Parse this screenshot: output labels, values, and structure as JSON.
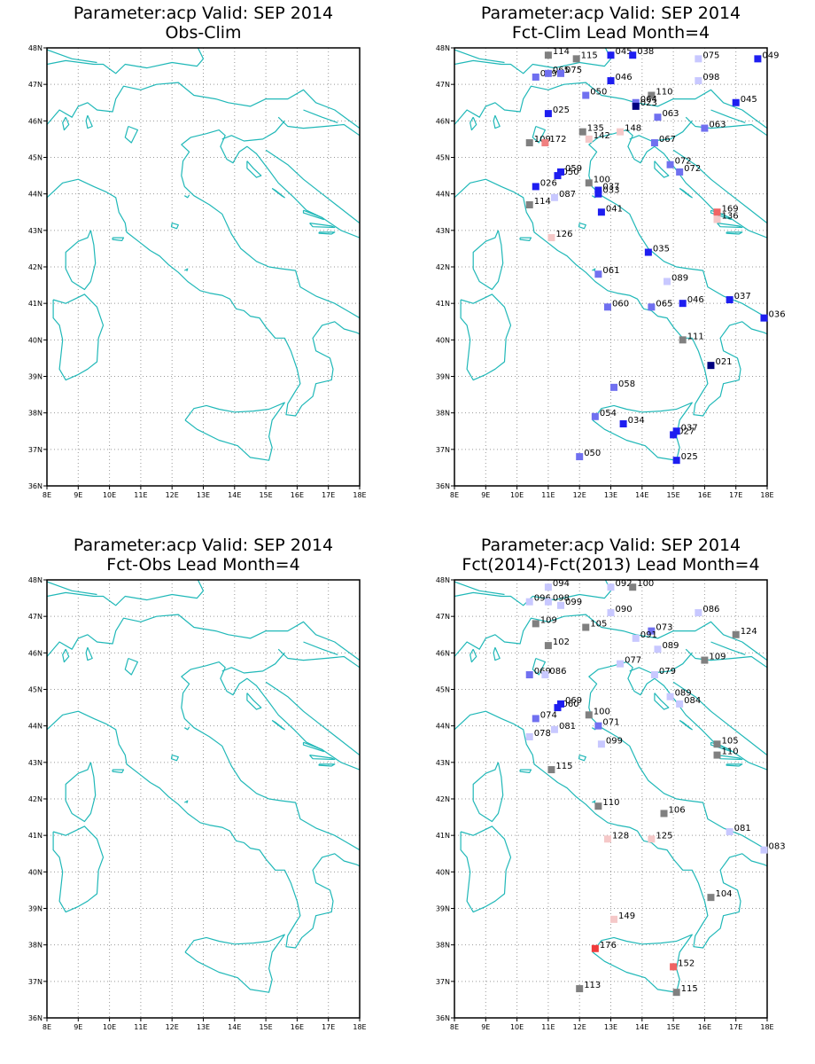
{
  "axes": {
    "lon_labels": [
      "8E",
      "9E",
      "10E",
      "11E",
      "12E",
      "13E",
      "14E",
      "15E",
      "16E",
      "17E",
      "18E"
    ],
    "lat_labels": [
      "36N",
      "37N",
      "38N",
      "39N",
      "40N",
      "41N",
      "42N",
      "43N",
      "44N",
      "45N",
      "46N",
      "47N",
      "48N"
    ]
  },
  "colors": {
    "coast": "#20b8b8",
    "grid": "#999999",
    "frame": "#000000"
  },
  "panels": [
    {
      "id": "obs-clim",
      "title1": "Parameter:acp Valid: SEP 2014",
      "title2": "Obs-Clim",
      "stations": []
    },
    {
      "id": "fct-clim",
      "title1": "Parameter:acp Valid: SEP 2014",
      "title2": "Fct-Clim Lead Month=4",
      "stations": [
        {
          "lon": 11.0,
          "lat": 47.8,
          "label": "114",
          "color": "#808080"
        },
        {
          "lon": 11.9,
          "lat": 47.7,
          "label": "115",
          "color": "#808080"
        },
        {
          "lon": 13.0,
          "lat": 47.8,
          "label": "045",
          "color": "#1e1ef0"
        },
        {
          "lon": 13.7,
          "lat": 47.8,
          "label": "038",
          "color": "#1e1ef0"
        },
        {
          "lon": 15.8,
          "lat": 47.7,
          "label": "075",
          "color": "#c8c8ff"
        },
        {
          "lon": 17.7,
          "lat": 47.7,
          "label": "049",
          "color": "#1e1ef0"
        },
        {
          "lon": 10.6,
          "lat": 47.2,
          "label": "069",
          "color": "#7070f0"
        },
        {
          "lon": 11.0,
          "lat": 47.3,
          "label": "065",
          "color": "#7070f0"
        },
        {
          "lon": 11.4,
          "lat": 47.3,
          "label": "075",
          "color": "#7070f0"
        },
        {
          "lon": 13.0,
          "lat": 47.1,
          "label": "046",
          "color": "#1e1ef0"
        },
        {
          "lon": 15.8,
          "lat": 47.1,
          "label": "098",
          "color": "#c8c8ff"
        },
        {
          "lon": 12.2,
          "lat": 46.7,
          "label": "050",
          "color": "#7070f0"
        },
        {
          "lon": 14.3,
          "lat": 46.7,
          "label": "110",
          "color": "#808080"
        },
        {
          "lon": 13.8,
          "lat": 46.5,
          "label": "064",
          "color": "#7070f0"
        },
        {
          "lon": 13.8,
          "lat": 46.4,
          "label": "023",
          "color": "#000080"
        },
        {
          "lon": 17.0,
          "lat": 46.5,
          "label": "045",
          "color": "#1e1ef0"
        },
        {
          "lon": 11.0,
          "lat": 46.2,
          "label": "025",
          "color": "#1e1ef0"
        },
        {
          "lon": 14.5,
          "lat": 46.1,
          "label": "063",
          "color": "#7070f0"
        },
        {
          "lon": 16.0,
          "lat": 45.8,
          "label": "063",
          "color": "#7070f0"
        },
        {
          "lon": 12.1,
          "lat": 45.7,
          "label": "135",
          "color": "#808080"
        },
        {
          "lon": 13.3,
          "lat": 45.7,
          "label": "148",
          "color": "#f5c8c8"
        },
        {
          "lon": 10.4,
          "lat": 45.4,
          "label": "109",
          "color": "#808080"
        },
        {
          "lon": 10.9,
          "lat": 45.4,
          "label": "172",
          "color": "#f08080"
        },
        {
          "lon": 12.3,
          "lat": 45.5,
          "label": "142",
          "color": "#f5c8c8"
        },
        {
          "lon": 14.4,
          "lat": 45.4,
          "label": "067",
          "color": "#7070f0"
        },
        {
          "lon": 14.9,
          "lat": 44.8,
          "label": "072",
          "color": "#7070f0"
        },
        {
          "lon": 15.2,
          "lat": 44.6,
          "label": "072",
          "color": "#7070f0"
        },
        {
          "lon": 11.3,
          "lat": 44.5,
          "label": "050",
          "color": "#1e1ef0"
        },
        {
          "lon": 11.4,
          "lat": 44.6,
          "label": "059",
          "color": "#1e1ef0"
        },
        {
          "lon": 10.6,
          "lat": 44.2,
          "label": "026",
          "color": "#1e1ef0"
        },
        {
          "lon": 12.3,
          "lat": 44.3,
          "label": "100",
          "color": "#808080"
        },
        {
          "lon": 12.6,
          "lat": 44.0,
          "label": "033",
          "color": "#1e1ef0"
        },
        {
          "lon": 12.6,
          "lat": 44.1,
          "label": "037",
          "color": "#1e1ef0"
        },
        {
          "lon": 11.2,
          "lat": 43.9,
          "label": "087",
          "color": "#c8c8ff"
        },
        {
          "lon": 10.4,
          "lat": 43.7,
          "label": "114",
          "color": "#808080"
        },
        {
          "lon": 12.7,
          "lat": 43.5,
          "label": "041",
          "color": "#1e1ef0"
        },
        {
          "lon": 16.4,
          "lat": 43.5,
          "label": "169",
          "color": "#f06464"
        },
        {
          "lon": 16.4,
          "lat": 43.3,
          "label": "136",
          "color": "#f5c8c8"
        },
        {
          "lon": 11.1,
          "lat": 42.8,
          "label": "126",
          "color": "#f5c8c8"
        },
        {
          "lon": 14.2,
          "lat": 42.4,
          "label": "035",
          "color": "#1e1ef0"
        },
        {
          "lon": 12.6,
          "lat": 41.8,
          "label": "061",
          "color": "#7070f0"
        },
        {
          "lon": 14.8,
          "lat": 41.6,
          "label": "089",
          "color": "#c8c8ff"
        },
        {
          "lon": 16.8,
          "lat": 41.1,
          "label": "037",
          "color": "#1e1ef0"
        },
        {
          "lon": 15.3,
          "lat": 41.0,
          "label": "046",
          "color": "#1e1ef0"
        },
        {
          "lon": 12.9,
          "lat": 40.9,
          "label": "060",
          "color": "#7070f0"
        },
        {
          "lon": 14.3,
          "lat": 40.9,
          "label": "065",
          "color": "#7070f0"
        },
        {
          "lon": 17.9,
          "lat": 40.6,
          "label": "036",
          "color": "#1e1ef0"
        },
        {
          "lon": 15.3,
          "lat": 40.0,
          "label": "111",
          "color": "#808080"
        },
        {
          "lon": 16.2,
          "lat": 39.3,
          "label": "021",
          "color": "#000080"
        },
        {
          "lon": 13.1,
          "lat": 38.7,
          "label": "058",
          "color": "#7070f0"
        },
        {
          "lon": 12.5,
          "lat": 37.9,
          "label": "054",
          "color": "#7070f0"
        },
        {
          "lon": 13.4,
          "lat": 37.7,
          "label": "034",
          "color": "#1e1ef0"
        },
        {
          "lon": 15.0,
          "lat": 37.4,
          "label": "027",
          "color": "#1e1ef0"
        },
        {
          "lon": 15.1,
          "lat": 37.5,
          "label": "037",
          "color": "#1e1ef0"
        },
        {
          "lon": 12.0,
          "lat": 36.8,
          "label": "050",
          "color": "#7070f0"
        },
        {
          "lon": 15.1,
          "lat": 36.7,
          "label": "025",
          "color": "#1e1ef0"
        }
      ]
    },
    {
      "id": "fct-obs",
      "title1": "Parameter:acp Valid: SEP 2014",
      "title2": "Fct-Obs Lead Month=4",
      "stations": []
    },
    {
      "id": "fct2014-fct2013",
      "title1": "Parameter:acp Valid: SEP 2014",
      "title2": "Fct(2014)-Fct(2013) Lead Month=4",
      "stations": [
        {
          "lon": 11.0,
          "lat": 47.8,
          "label": "094",
          "color": "#c8c8ff"
        },
        {
          "lon": 13.0,
          "lat": 47.8,
          "label": "092",
          "color": "#c8c8ff"
        },
        {
          "lon": 13.7,
          "lat": 47.8,
          "label": "100",
          "color": "#808080"
        },
        {
          "lon": 10.4,
          "lat": 47.4,
          "label": "096",
          "color": "#c8c8ff"
        },
        {
          "lon": 11.0,
          "lat": 47.4,
          "label": "098",
          "color": "#c8c8ff"
        },
        {
          "lon": 11.4,
          "lat": 47.3,
          "label": "099",
          "color": "#c8c8ff"
        },
        {
          "lon": 15.8,
          "lat": 47.1,
          "label": "086",
          "color": "#c8c8ff"
        },
        {
          "lon": 13.0,
          "lat": 47.1,
          "label": "090",
          "color": "#c8c8ff"
        },
        {
          "lon": 10.6,
          "lat": 46.8,
          "label": "109",
          "color": "#808080"
        },
        {
          "lon": 12.2,
          "lat": 46.7,
          "label": "105",
          "color": "#808080"
        },
        {
          "lon": 14.3,
          "lat": 46.6,
          "label": "073",
          "color": "#7070f0"
        },
        {
          "lon": 17.0,
          "lat": 46.5,
          "label": "124",
          "color": "#808080"
        },
        {
          "lon": 13.8,
          "lat": 46.4,
          "label": "091",
          "color": "#c8c8ff"
        },
        {
          "lon": 11.0,
          "lat": 46.2,
          "label": "102",
          "color": "#808080"
        },
        {
          "lon": 14.5,
          "lat": 46.1,
          "label": "089",
          "color": "#c8c8ff"
        },
        {
          "lon": 16.0,
          "lat": 45.8,
          "label": "109",
          "color": "#808080"
        },
        {
          "lon": 13.3,
          "lat": 45.7,
          "label": "077",
          "color": "#c8c8ff"
        },
        {
          "lon": 10.4,
          "lat": 45.4,
          "label": "069",
          "color": "#7070f0"
        },
        {
          "lon": 10.9,
          "lat": 45.4,
          "label": "086",
          "color": "#c8c8ff"
        },
        {
          "lon": 14.4,
          "lat": 45.4,
          "label": "079",
          "color": "#c8c8ff"
        },
        {
          "lon": 14.9,
          "lat": 44.8,
          "label": "089",
          "color": "#c8c8ff"
        },
        {
          "lon": 15.2,
          "lat": 44.6,
          "label": "084",
          "color": "#c8c8ff"
        },
        {
          "lon": 11.3,
          "lat": 44.5,
          "label": "060",
          "color": "#1e1ef0"
        },
        {
          "lon": 11.4,
          "lat": 44.6,
          "label": "069",
          "color": "#1e1ef0"
        },
        {
          "lon": 10.6,
          "lat": 44.2,
          "label": "074",
          "color": "#7070f0"
        },
        {
          "lon": 12.3,
          "lat": 44.3,
          "label": "100",
          "color": "#808080"
        },
        {
          "lon": 12.6,
          "lat": 44.0,
          "label": "071",
          "color": "#7070f0"
        },
        {
          "lon": 11.2,
          "lat": 43.9,
          "label": "081",
          "color": "#c8c8ff"
        },
        {
          "lon": 10.4,
          "lat": 43.7,
          "label": "078",
          "color": "#c8c8ff"
        },
        {
          "lon": 12.7,
          "lat": 43.5,
          "label": "099",
          "color": "#c8c8ff"
        },
        {
          "lon": 16.4,
          "lat": 43.5,
          "label": "105",
          "color": "#808080"
        },
        {
          "lon": 16.4,
          "lat": 43.2,
          "label": "110",
          "color": "#808080"
        },
        {
          "lon": 11.1,
          "lat": 42.8,
          "label": "115",
          "color": "#808080"
        },
        {
          "lon": 12.6,
          "lat": 41.8,
          "label": "110",
          "color": "#808080"
        },
        {
          "lon": 14.7,
          "lat": 41.6,
          "label": "106",
          "color": "#808080"
        },
        {
          "lon": 16.8,
          "lat": 41.1,
          "label": "081",
          "color": "#c8c8ff"
        },
        {
          "lon": 12.9,
          "lat": 40.9,
          "label": "128",
          "color": "#f5c8c8"
        },
        {
          "lon": 14.3,
          "lat": 40.9,
          "label": "125",
          "color": "#f5c8c8"
        },
        {
          "lon": 17.9,
          "lat": 40.6,
          "label": "083",
          "color": "#c8c8ff"
        },
        {
          "lon": 16.2,
          "lat": 39.3,
          "label": "104",
          "color": "#808080"
        },
        {
          "lon": 13.1,
          "lat": 38.7,
          "label": "149",
          "color": "#f5c8c8"
        },
        {
          "lon": 12.5,
          "lat": 37.9,
          "label": "176",
          "color": "#f03c3c"
        },
        {
          "lon": 15.0,
          "lat": 37.4,
          "label": "152",
          "color": "#f06464"
        },
        {
          "lon": 12.0,
          "lat": 36.8,
          "label": "113",
          "color": "#808080"
        },
        {
          "lon": 15.1,
          "lat": 36.7,
          "label": "115",
          "color": "#808080"
        }
      ]
    }
  ]
}
